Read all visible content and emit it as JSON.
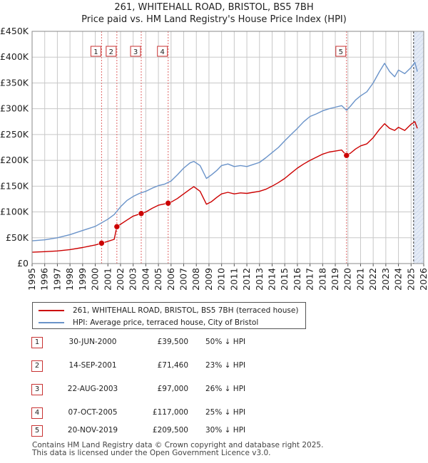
{
  "title_line1": "261, WHITEHALL ROAD, BRISTOL, BS5 7BH",
  "title_line2": "Price paid vs. HM Land Registry's House Price Index (HPI)",
  "colors": {
    "property": "#cc0000",
    "hpi": "#6a93c9",
    "shade": "#dde6f4",
    "grid": "#c8c8c8",
    "vline": "#e06666"
  },
  "chart_data": {
    "type": "line",
    "title": "Price paid vs. HM Land Registry's House Price Index (HPI)",
    "xlabel": "",
    "ylabel": "",
    "xlim": [
      1995,
      2026
    ],
    "ylim": [
      0,
      450000
    ],
    "x_ticks": [
      "1995",
      "1996",
      "1997",
      "1998",
      "1999",
      "2000",
      "2001",
      "2002",
      "2003",
      "2004",
      "2005",
      "2006",
      "2007",
      "2008",
      "2009",
      "2010",
      "2011",
      "2012",
      "2013",
      "2014",
      "2015",
      "2016",
      "2017",
      "2018",
      "2019",
      "2020",
      "2021",
      "2022",
      "2023",
      "2024",
      "2025",
      "2026"
    ],
    "y_ticks": [
      {
        "value": 0,
        "label": "£0"
      },
      {
        "value": 50000,
        "label": "£50K"
      },
      {
        "value": 100000,
        "label": "£100K"
      },
      {
        "value": 150000,
        "label": "£150K"
      },
      {
        "value": 200000,
        "label": "£200K"
      },
      {
        "value": 250000,
        "label": "£250K"
      },
      {
        "value": 300000,
        "label": "£300K"
      },
      {
        "value": 350000,
        "label": "£350K"
      },
      {
        "value": 400000,
        "label": "£400K"
      },
      {
        "value": 450000,
        "label": "£450K"
      }
    ],
    "grid": true,
    "series": [
      {
        "name": "261, WHITEHALL ROAD, BRISTOL, BS5 7BH (terraced house)",
        "x": [
          1995,
          1996,
          1997,
          1998,
          1999,
          2000,
          2000.5,
          2001,
          2001.5,
          2001.71,
          2002,
          2002.5,
          2003,
          2003.64,
          2004,
          2004.5,
          2005,
          2005.77,
          2006,
          2006.5,
          2007,
          2007.5,
          2007.8,
          2008.3,
          2008.8,
          2009.2,
          2009.6,
          2010,
          2010.5,
          2011,
          2011.5,
          2012,
          2012.5,
          2013,
          2013.5,
          2014,
          2014.5,
          2015,
          2015.5,
          2016,
          2016.5,
          2017,
          2017.5,
          2018,
          2018.5,
          2019,
          2019.5,
          2019.89,
          2020.2,
          2020.6,
          2021,
          2021.5,
          2022,
          2022.5,
          2022.9,
          2023.3,
          2023.7,
          2024,
          2024.5,
          2025,
          2025.3,
          2025.5
        ],
        "values": [
          22000,
          23000,
          24500,
          27000,
          31000,
          36000,
          39500,
          43000,
          47000,
          71460,
          76000,
          84000,
          92000,
          97000,
          100000,
          107000,
          113000,
          117000,
          119000,
          126000,
          135000,
          144000,
          149000,
          140000,
          115000,
          120000,
          128000,
          135000,
          138000,
          135000,
          137000,
          136000,
          138000,
          140000,
          144000,
          150000,
          157000,
          165000,
          175000,
          185000,
          193000,
          200000,
          206000,
          212000,
          216000,
          218000,
          220000,
          209500,
          214000,
          222000,
          228000,
          232000,
          244000,
          260000,
          271000,
          262000,
          258000,
          264000,
          258000,
          270000,
          275000,
          262000
        ]
      },
      {
        "name": "HPI: Average price, terraced house, City of Bristol",
        "x": [
          1995,
          1996,
          1997,
          1998,
          1999,
          2000,
          2000.5,
          2001,
          2001.5,
          2002,
          2002.5,
          2003,
          2003.5,
          2004,
          2004.5,
          2005,
          2005.5,
          2006,
          2006.5,
          2007,
          2007.5,
          2007.8,
          2008.3,
          2008.8,
          2009.2,
          2009.6,
          2010,
          2010.5,
          2011,
          2011.5,
          2012,
          2012.5,
          2013,
          2013.5,
          2014,
          2014.5,
          2015,
          2015.5,
          2016,
          2016.5,
          2017,
          2017.5,
          2018,
          2018.5,
          2019,
          2019.5,
          2019.89,
          2020.2,
          2020.6,
          2021,
          2021.5,
          2022,
          2022.5,
          2022.9,
          2023.3,
          2023.7,
          2024,
          2024.5,
          2025,
          2025.3,
          2025.5
        ],
        "values": [
          44000,
          46000,
          50000,
          56000,
          64000,
          72000,
          79000,
          86000,
          95000,
          110000,
          122000,
          130000,
          136000,
          140000,
          146000,
          151000,
          154000,
          160000,
          172000,
          185000,
          195000,
          198000,
          190000,
          165000,
          172000,
          180000,
          190000,
          193000,
          188000,
          190000,
          188000,
          192000,
          196000,
          205000,
          215000,
          225000,
          238000,
          250000,
          262000,
          275000,
          285000,
          290000,
          296000,
          300000,
          303000,
          306000,
          297000,
          305000,
          317000,
          325000,
          333000,
          350000,
          372000,
          388000,
          372000,
          362000,
          375000,
          368000,
          380000,
          390000,
          372000
        ]
      }
    ],
    "transactions": [
      {
        "marker": "1",
        "date": "30-JUN-2000",
        "x": 2000.5,
        "price": 39500,
        "price_label": "£39,500",
        "hpi_label": "50% ↓ HPI"
      },
      {
        "marker": "2",
        "date": "14-SEP-2001",
        "x": 2001.71,
        "price": 71460,
        "price_label": "£71,460",
        "hpi_label": "23% ↓ HPI"
      },
      {
        "marker": "3",
        "date": "22-AUG-2003",
        "x": 2003.64,
        "price": 97000,
        "price_label": "£97,000",
        "hpi_label": "26% ↓ HPI"
      },
      {
        "marker": "4",
        "date": "07-OCT-2005",
        "x": 2005.77,
        "price": 117000,
        "price_label": "£117,000",
        "hpi_label": "25% ↓ HPI"
      },
      {
        "marker": "5",
        "date": "20-NOV-2019",
        "x": 2019.89,
        "price": 209500,
        "price_label": "£209,500",
        "hpi_label": "30% ↓ HPI"
      }
    ],
    "shaded_from": 2025.2
  },
  "legend": {
    "property_label": "261, WHITEHALL ROAD, BRISTOL, BS5 7BH (terraced house)",
    "hpi_label": "HPI: Average price, terraced house, City of Bristol"
  },
  "footer": {
    "line1": "Contains HM Land Registry data © Crown copyright and database right 2025.",
    "line2": "This data is licensed under the Open Government Licence v3.0."
  }
}
